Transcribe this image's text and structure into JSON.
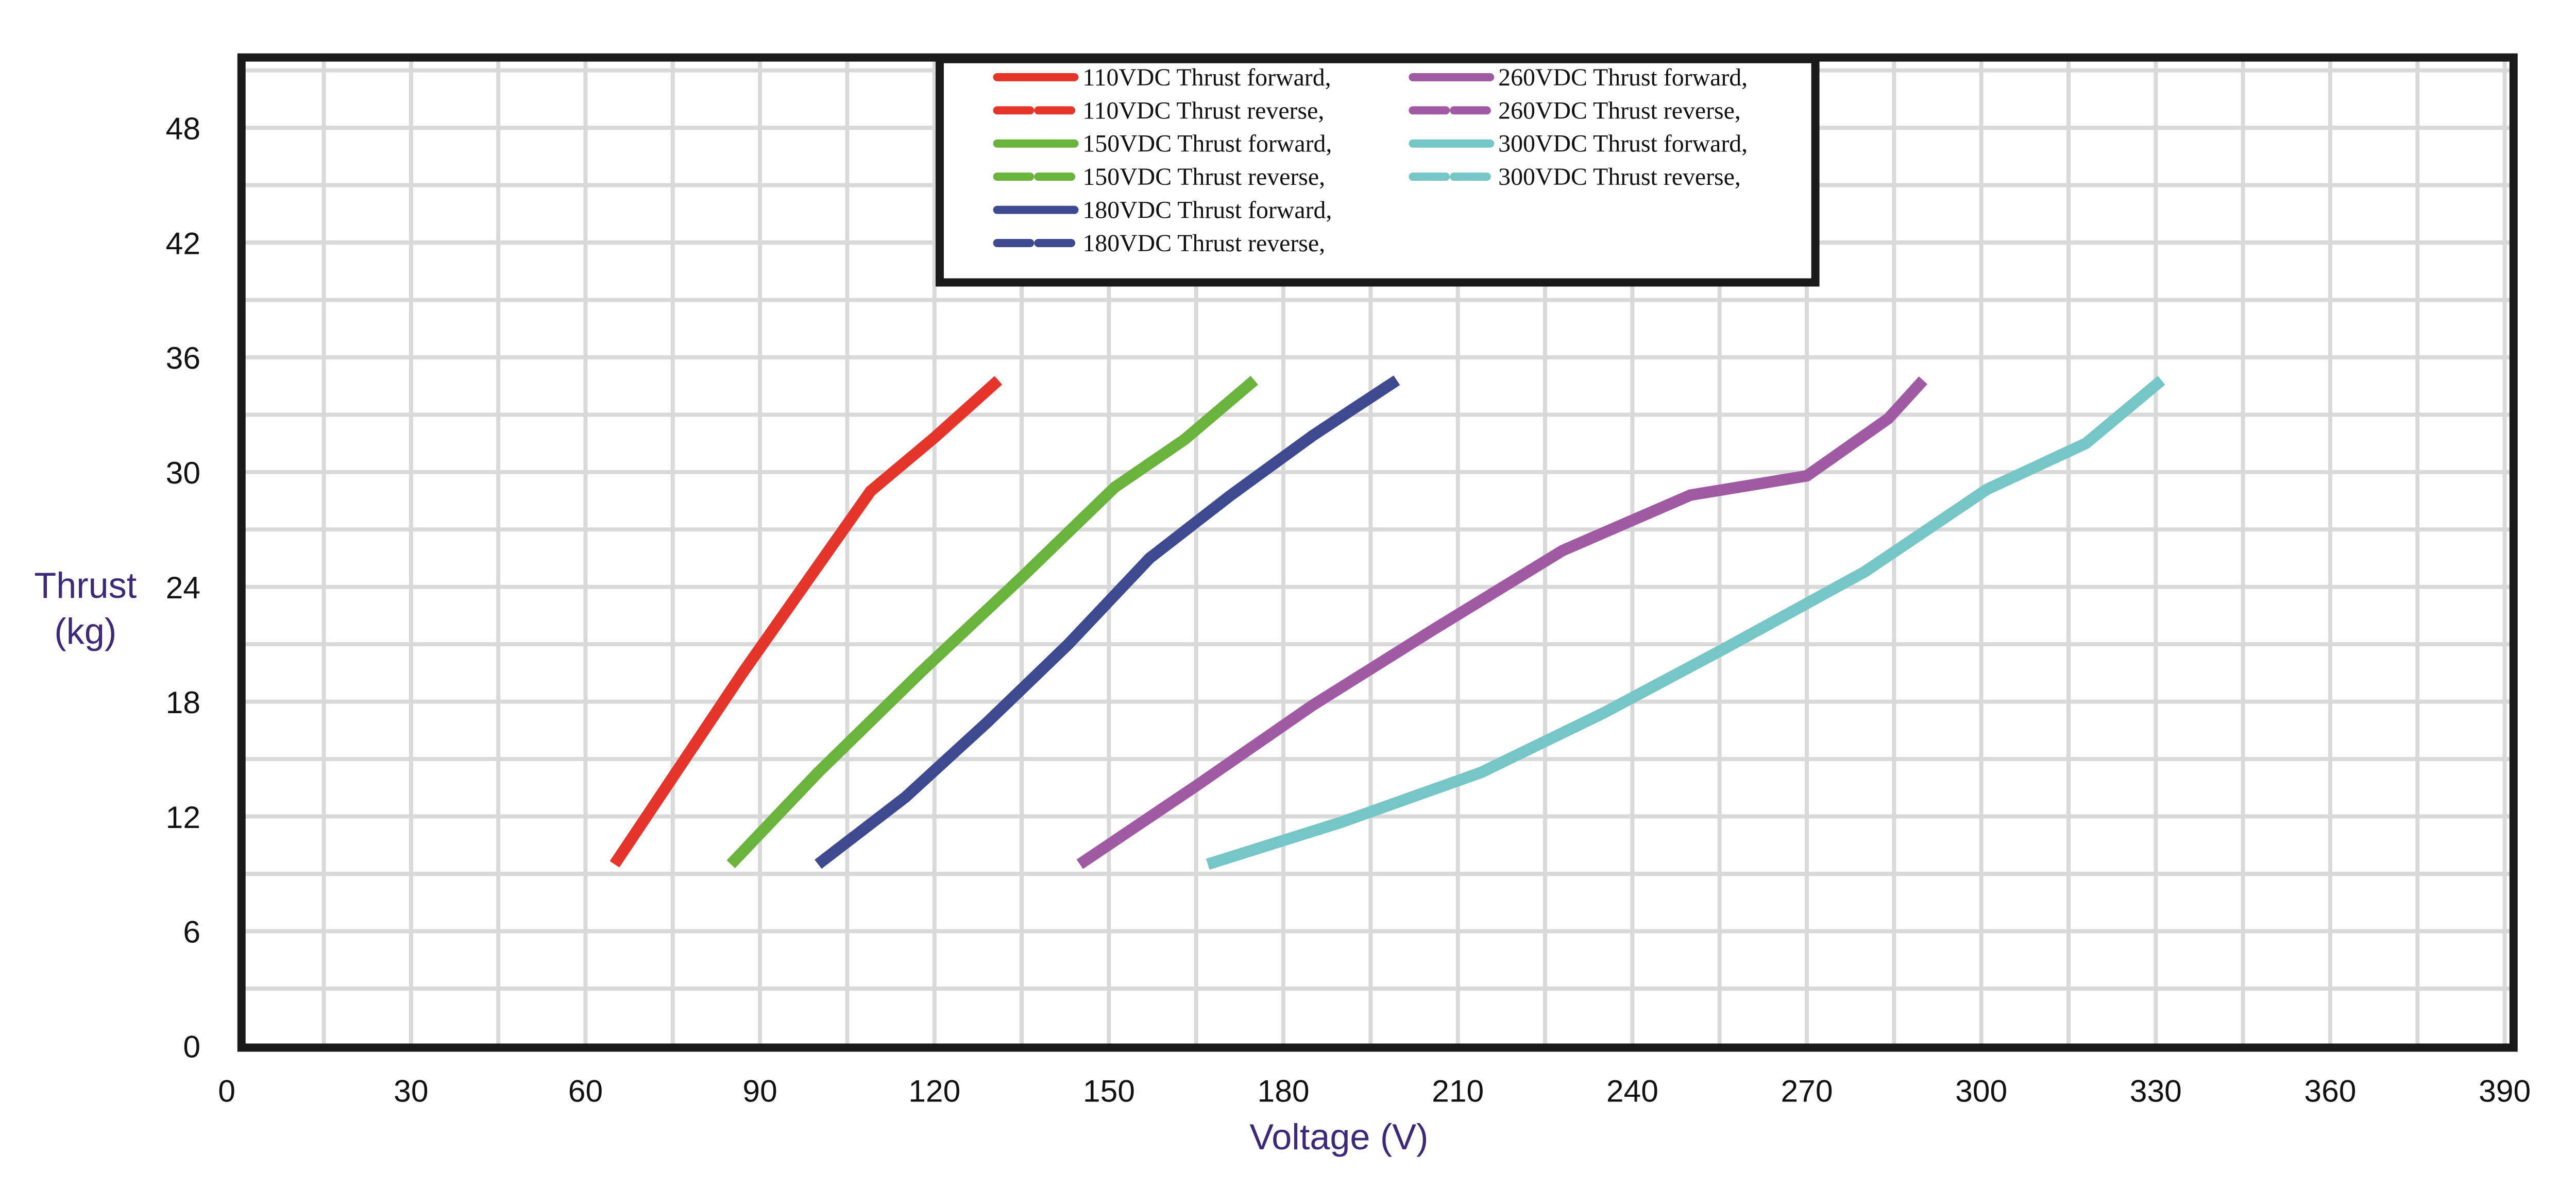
{
  "chart_data": {
    "type": "line",
    "title": "",
    "xlabel": "Voltage (V)",
    "ylabel_line1": "Thrust",
    "ylabel_line2": "(kg)",
    "xlim": [
      0,
      391
    ],
    "ylim": [
      0,
      51.5
    ],
    "xticks": [
      "0",
      "30",
      "60",
      "90",
      "120",
      "150",
      "180",
      "210",
      "240",
      "270",
      "300",
      "330",
      "360",
      "390"
    ],
    "yticks": [
      "0",
      "6",
      "12",
      "18",
      "24",
      "30",
      "36",
      "42",
      "48"
    ],
    "grid": true,
    "legend_position": "top-center",
    "series": [
      {
        "name": "110VDC  Thrust forward,",
        "color": "#e5352b",
        "dash": false,
        "x": [
          65,
          87,
          109,
          120,
          131
        ],
        "y": [
          9.5,
          19.5,
          29,
          31.8,
          34.8
        ]
      },
      {
        "name": "110VDC  Thrust reverse,",
        "color": "#e5352b",
        "dash": true,
        "x": [
          65,
          87,
          109,
          120,
          131
        ],
        "y": [
          9.5,
          19.5,
          29,
          31.8,
          34.8
        ]
      },
      {
        "name": "150VDC  Thrust forward,",
        "color": "#6ab33c",
        "dash": false,
        "x": [
          85,
          100,
          117.5,
          135,
          151,
          163,
          175
        ],
        "y": [
          9.5,
          14.3,
          19.5,
          24.5,
          29.2,
          31.7,
          34.8
        ]
      },
      {
        "name": "150VDC  Thrust reverse,",
        "color": "#6ab33c",
        "dash": true,
        "x": [
          85,
          100,
          117.5,
          135,
          151,
          163,
          175
        ],
        "y": [
          9.5,
          14.3,
          19.5,
          24.5,
          29.2,
          31.7,
          34.8
        ]
      },
      {
        "name": "180VDC  Thrust forward,",
        "color": "#3d4a8f",
        "dash": false,
        "x": [
          100,
          115,
          129,
          143,
          157,
          171,
          185,
          193,
          199.5
        ],
        "y": [
          9.5,
          13,
          16.9,
          21,
          25.5,
          28.8,
          31.9,
          33.5,
          34.8
        ]
      },
      {
        "name": "180VDC  Thrust reverse,",
        "color": "#3d4a8f",
        "dash": true,
        "x": [
          100,
          115,
          129,
          143,
          157,
          171,
          185,
          193,
          199.5
        ],
        "y": [
          9.5,
          13,
          16.9,
          21,
          25.5,
          28.8,
          31.9,
          33.5,
          34.8
        ]
      },
      {
        "name": "260VDC  Thrust forward,",
        "color": "#a05aa3",
        "dash": false,
        "x": [
          145,
          165,
          185,
          206,
          228,
          250,
          270,
          284,
          290
        ],
        "y": [
          9.5,
          13.6,
          17.8,
          21.8,
          25.9,
          28.8,
          29.8,
          32.8,
          34.8
        ]
      },
      {
        "name": "260VDC  Thrust reverse,",
        "color": "#a05aa3",
        "dash": true,
        "x": [
          145,
          165,
          185,
          206,
          228,
          250,
          270,
          284,
          290
        ],
        "y": [
          9.5,
          13.6,
          17.8,
          21.8,
          25.9,
          28.8,
          29.8,
          32.8,
          34.8
        ]
      },
      {
        "name": "300VDC  Thrust forward,",
        "color": "#76c6c6",
        "dash": false,
        "x": [
          167,
          190,
          214,
          235,
          256,
          280,
          301,
          318,
          331
        ],
        "y": [
          9.5,
          11.7,
          14.3,
          17.4,
          20.8,
          24.8,
          29.1,
          31.5,
          34.8
        ]
      },
      {
        "name": "300VDC  Thrust reverse,",
        "color": "#76c6c6",
        "dash": true,
        "x": [
          167,
          190,
          214,
          235,
          256,
          280,
          301,
          318,
          331
        ],
        "y": [
          9.5,
          11.7,
          14.3,
          17.4,
          20.8,
          24.8,
          29.1,
          31.5,
          34.8
        ]
      }
    ]
  }
}
